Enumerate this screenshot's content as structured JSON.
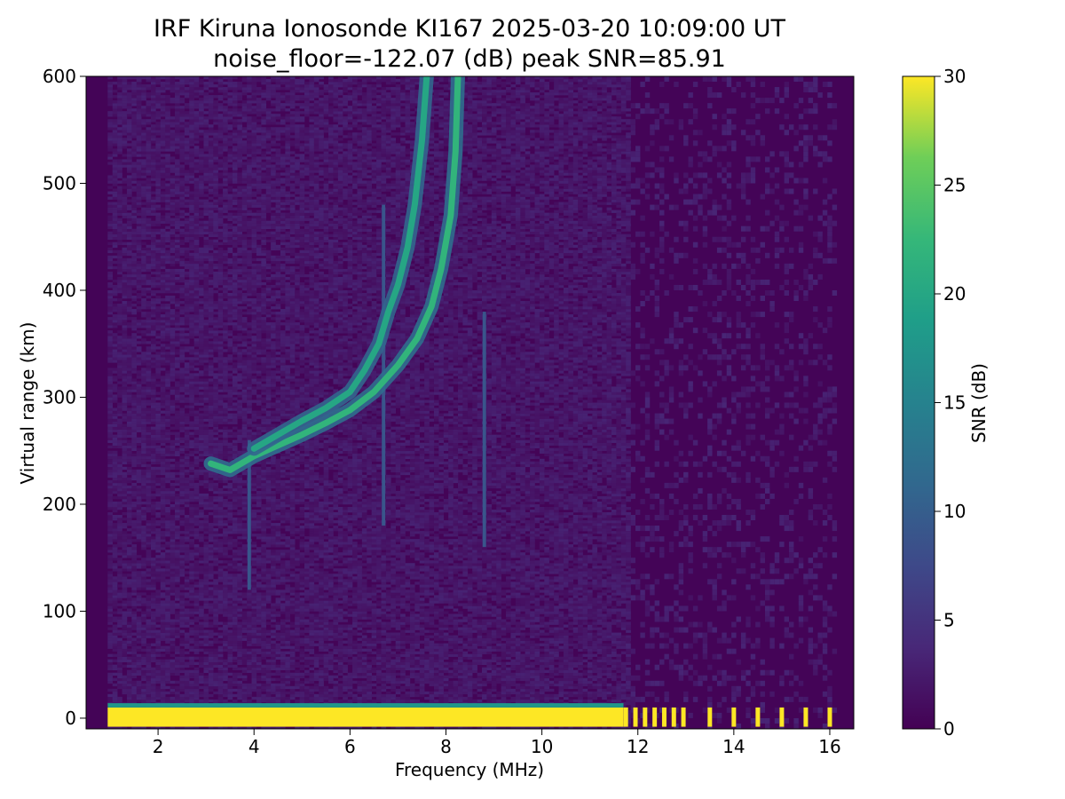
{
  "chart_data": {
    "type": "heatmap",
    "title": "IRF Kiruna Ionosonde KI167 2025-03-20 10:09:00  UT",
    "subtitle": "noise_floor=-122.07 (dB) peak SNR=85.91",
    "xlabel": "Frequency (MHz)",
    "ylabel": "Virtual range (km)",
    "xlim": [
      0.5,
      16.5
    ],
    "ylim": [
      -10,
      600
    ],
    "x_ticks": [
      2,
      4,
      6,
      8,
      10,
      12,
      14,
      16
    ],
    "y_ticks": [
      0,
      100,
      200,
      300,
      400,
      500,
      600
    ],
    "colorbar": {
      "label": "SNR (dB)",
      "range": [
        0,
        30
      ],
      "ticks": [
        0,
        5,
        10,
        15,
        20,
        25,
        30
      ],
      "colormap": "viridis"
    },
    "background_snr": 2,
    "traces": [
      {
        "name": "ground-echo",
        "points": [
          [
            0.95,
            0
          ],
          [
            1.5,
            0
          ],
          [
            2.5,
            0
          ],
          [
            3.5,
            0
          ],
          [
            5,
            0
          ],
          [
            6.5,
            0
          ],
          [
            8,
            0
          ],
          [
            9.5,
            0
          ],
          [
            11,
            0
          ],
          [
            11.7,
            0
          ]
        ],
        "snr": 30
      },
      {
        "name": "lower-trace",
        "points": [
          [
            3.1,
            238
          ],
          [
            3.5,
            232
          ],
          [
            4.0,
            245
          ],
          [
            4.5,
            255
          ],
          [
            5.0,
            265
          ],
          [
            5.5,
            276
          ],
          [
            6.0,
            288
          ],
          [
            6.5,
            305
          ],
          [
            7.0,
            330
          ],
          [
            7.4,
            355
          ],
          [
            7.7,
            385
          ],
          [
            7.9,
            420
          ],
          [
            8.1,
            470
          ],
          [
            8.2,
            530
          ],
          [
            8.25,
            600
          ]
        ],
        "snr": 22
      },
      {
        "name": "upper-trace",
        "points": [
          [
            4.0,
            252
          ],
          [
            4.5,
            265
          ],
          [
            5.0,
            278
          ],
          [
            5.5,
            290
          ],
          [
            6.0,
            305
          ],
          [
            6.3,
            325
          ],
          [
            6.6,
            350
          ],
          [
            6.8,
            380
          ],
          [
            7.0,
            405
          ],
          [
            7.2,
            440
          ],
          [
            7.35,
            480
          ],
          [
            7.5,
            540
          ],
          [
            7.6,
            600
          ]
        ],
        "snr": 20
      }
    ],
    "high_freq_pulses": [
      11.75,
      11.95,
      12.15,
      12.35,
      12.55,
      12.75,
      12.95,
      13.5,
      14.0,
      14.5,
      15.0,
      15.5,
      16.0
    ],
    "vertical_interference": [
      [
        6.7,
        180,
        480
      ],
      [
        3.9,
        120,
        260
      ],
      [
        8.8,
        160,
        380
      ]
    ]
  }
}
